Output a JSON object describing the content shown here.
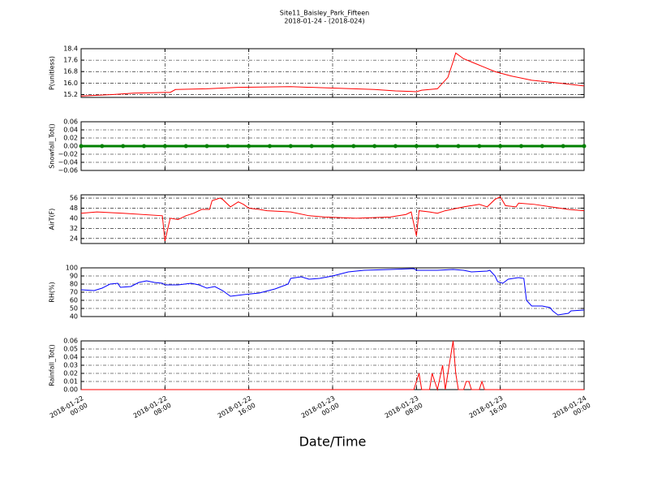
{
  "title": "Site11_Baisley_Park_Fifteen",
  "subtitle": "2018-01-24 - (2018-024)",
  "xlabel": "Date/Time",
  "chart_data": [
    {
      "type": "line",
      "ylabel": "P(unitless)",
      "color": "#ff0000",
      "grid": true,
      "xlim": [
        "2018-01-22 00:00",
        "2018-01-24 00:00"
      ],
      "ylim": [
        15.0,
        18.4
      ],
      "yticks": [
        15.2,
        {
          "value": 16.0,
          "label": "16.0"
        },
        16.8,
        17.6,
        18.4
      ],
      "x": [
        "2018-01-22 00:00",
        "2018-01-22 03:00",
        "2018-01-22 05:00",
        "2018-01-22 08:00",
        "2018-01-22 08:30",
        "2018-01-22 09:00",
        "2018-01-22 12:00",
        "2018-01-22 15:00",
        "2018-01-22 20:00",
        "2018-01-23 00:00",
        "2018-01-23 04:00",
        "2018-01-23 06:00",
        "2018-01-23 08:00",
        "2018-01-23 08:30",
        "2018-01-23 10:00",
        "2018-01-23 11:00",
        "2018-01-23 11:30",
        "2018-01-23 11:45",
        "2018-01-23 12:30",
        "2018-01-23 13:30",
        "2018-01-23 14:30",
        "2018-01-23 15:30",
        "2018-01-23 17:00",
        "2018-01-23 19:00",
        "2018-01-23 21:00",
        "2018-01-24 00:00"
      ],
      "values": [
        15.1,
        15.2,
        15.3,
        15.35,
        15.35,
        15.55,
        15.6,
        15.7,
        15.75,
        15.65,
        15.55,
        15.45,
        15.4,
        15.5,
        15.6,
        16.4,
        17.5,
        18.1,
        17.7,
        17.4,
        17.1,
        16.8,
        16.5,
        16.2,
        16.05,
        15.8
      ]
    },
    {
      "type": "scatter",
      "ylabel": "Snowfall_Tot()",
      "color": "#008000",
      "grid": true,
      "xlim": [
        "2018-01-22 00:00",
        "2018-01-24 00:00"
      ],
      "ylim": [
        -0.06,
        0.06
      ],
      "yticks": [
        {
          "value": -0.06,
          "label": "−0.06"
        },
        {
          "value": -0.04,
          "label": "−0.04"
        },
        {
          "value": -0.02,
          "label": "−0.02"
        },
        {
          "value": 0,
          "label": "0.00"
        },
        {
          "value": 0.02,
          "label": "0.02"
        },
        {
          "value": 0.04,
          "label": "0.04"
        },
        {
          "value": 0.06,
          "label": "0.06"
        }
      ],
      "x": [
        "2018-01-22 00:00",
        "2018-01-22 02:00",
        "2018-01-22 04:00",
        "2018-01-22 06:00",
        "2018-01-22 08:00",
        "2018-01-22 10:00",
        "2018-01-22 12:00",
        "2018-01-22 14:00",
        "2018-01-22 16:00",
        "2018-01-22 18:00",
        "2018-01-22 20:00",
        "2018-01-22 22:00",
        "2018-01-23 00:00",
        "2018-01-23 02:00",
        "2018-01-23 04:00",
        "2018-01-23 06:00",
        "2018-01-23 08:00",
        "2018-01-23 10:00",
        "2018-01-23 12:00",
        "2018-01-23 14:00",
        "2018-01-23 16:00",
        "2018-01-23 18:00",
        "2018-01-23 20:00",
        "2018-01-23 22:00",
        "2018-01-24 00:00"
      ],
      "values": [
        0,
        0,
        0,
        0,
        0,
        0,
        0,
        0,
        0,
        0,
        0,
        0,
        0,
        0,
        0,
        0,
        0,
        0,
        0,
        0,
        0,
        0,
        0,
        0,
        0
      ]
    },
    {
      "type": "line",
      "ylabel": "AirT(F)",
      "color": "#ff0000",
      "grid": true,
      "xlim": [
        "2018-01-22 00:00",
        "2018-01-24 00:00"
      ],
      "ylim": [
        20,
        58.6
      ],
      "yticks": [
        24,
        32,
        40,
        48,
        56
      ],
      "x": [
        "2018-01-22 00:00",
        "2018-01-22 01:30",
        "2018-01-22 04:00",
        "2018-01-22 07:45",
        "2018-01-22 08:00",
        "2018-01-22 08:30",
        "2018-01-22 09:15",
        "2018-01-22 10:00",
        "2018-01-22 10:45",
        "2018-01-22 11:30",
        "2018-01-22 12:15",
        "2018-01-22 12:30",
        "2018-01-22 13:15",
        "2018-01-22 13:30",
        "2018-01-22 14:15",
        "2018-01-22 15:00",
        "2018-01-22 15:30",
        "2018-01-22 16:00",
        "2018-01-22 17:00",
        "2018-01-22 17:45",
        "2018-01-22 20:00",
        "2018-01-22 21:45",
        "2018-01-22 23:15",
        "2018-01-23 02:15",
        "2018-01-23 05:30",
        "2018-01-23 07:00",
        "2018-01-23 07:30",
        "2018-01-23 08:00",
        "2018-01-23 08:15",
        "2018-01-23 09:15",
        "2018-01-23 10:00",
        "2018-01-23 10:45",
        "2018-01-23 12:30",
        "2018-01-23 14:00",
        "2018-01-23 14:45",
        "2018-01-23 15:30",
        "2018-01-23 16:00",
        "2018-01-23 16:30",
        "2018-01-23 17:30",
        "2018-01-23 17:45",
        "2018-01-23 19:15",
        "2018-01-23 22:30",
        "2018-01-24 00:00"
      ],
      "values": [
        44,
        45,
        44,
        42,
        22,
        40,
        39,
        42,
        44,
        47,
        47,
        54,
        56,
        55,
        49,
        53,
        51,
        48,
        47,
        46,
        45,
        42,
        41,
        40,
        41,
        43,
        45,
        26,
        46,
        45,
        44,
        46,
        49,
        51,
        49,
        55,
        57,
        50,
        49,
        52,
        51,
        47,
        46
      ]
    },
    {
      "type": "line",
      "ylabel": "RH(%)",
      "color": "#0000ff",
      "grid": true,
      "xlim": [
        "2018-01-22 00:00",
        "2018-01-24 00:00"
      ],
      "ylim": [
        40,
        100
      ],
      "yticks": [
        40,
        50,
        60,
        70,
        80,
        90,
        100
      ],
      "x": [
        "2018-01-22 00:00",
        "2018-01-22 01:15",
        "2018-01-22 02:00",
        "2018-01-22 02:45",
        "2018-01-22 03:30",
        "2018-01-22 03:45",
        "2018-01-22 04:45",
        "2018-01-22 05:30",
        "2018-01-22 06:15",
        "2018-01-22 07:00",
        "2018-01-22 07:45",
        "2018-01-22 08:00",
        "2018-01-22 09:15",
        "2018-01-22 10:30",
        "2018-01-22 11:15",
        "2018-01-22 12:00",
        "2018-01-22 12:45",
        "2018-01-22 13:30",
        "2018-01-22 14:15",
        "2018-01-22 15:30",
        "2018-01-22 17:00",
        "2018-01-22 18:30",
        "2018-01-22 19:45",
        "2018-01-22 20:00",
        "2018-01-22 21:00",
        "2018-01-22 21:45",
        "2018-01-22 22:45",
        "2018-01-23 00:00",
        "2018-01-23 01:30",
        "2018-01-23 03:00",
        "2018-01-23 05:30",
        "2018-01-23 07:45",
        "2018-01-23 08:00",
        "2018-01-23 10:00",
        "2018-01-23 11:30",
        "2018-01-23 12:30",
        "2018-01-23 13:15",
        "2018-01-23 14:45",
        "2018-01-23 15:00",
        "2018-01-23 15:30",
        "2018-01-23 15:45",
        "2018-01-23 16:15",
        "2018-01-23 16:45",
        "2018-01-23 17:45",
        "2018-01-23 18:15",
        "2018-01-23 18:30",
        "2018-01-23 19:00",
        "2018-01-23 20:00",
        "2018-01-23 20:45",
        "2018-01-23 21:00",
        "2018-01-23 21:30",
        "2018-01-23 22:30",
        "2018-01-23 22:45",
        "2018-01-24 00:00"
      ],
      "values": [
        73,
        72,
        75,
        80,
        81,
        76,
        77,
        82,
        84,
        82,
        81,
        79,
        79,
        81,
        79,
        75,
        77,
        72,
        65,
        67,
        69,
        74,
        80,
        87,
        89,
        86,
        87,
        90,
        95,
        97,
        98,
        99,
        97,
        97,
        98,
        97,
        95,
        96,
        97,
        90,
        83,
        81,
        86,
        88,
        87,
        60,
        53,
        53,
        51,
        47,
        42,
        44,
        47,
        48
      ]
    },
    {
      "type": "line",
      "ylabel": "Rainfall_Tot()",
      "color": "#ff0000",
      "grid": true,
      "xlim": [
        "2018-01-22 00:00",
        "2018-01-24 00:00"
      ],
      "ylim": [
        0,
        0.06
      ],
      "yticks": [
        {
          "value": 0,
          "label": "0.00"
        },
        {
          "value": 0.01,
          "label": "0.01"
        },
        {
          "value": 0.02,
          "label": "0.02"
        },
        {
          "value": 0.03,
          "label": "0.03"
        },
        {
          "value": 0.04,
          "label": "0.04"
        },
        {
          "value": 0.05,
          "label": "0.05"
        },
        {
          "value": 0.06,
          "label": "0.06"
        }
      ],
      "xticks": [
        {
          "value": "2018-01-22 00:00",
          "label": "2018-01-22\n00:00"
        },
        {
          "value": "2018-01-22 08:00",
          "label": "2018-01-22\n08:00"
        },
        {
          "value": "2018-01-22 16:00",
          "label": "2018-01-22\n16:00"
        },
        {
          "value": "2018-01-23 00:00",
          "label": "2018-01-23\n00:00"
        },
        {
          "value": "2018-01-23 08:00",
          "label": "2018-01-23\n08:00"
        },
        {
          "value": "2018-01-23 16:00",
          "label": "2018-01-23\n16:00"
        },
        {
          "value": "2018-01-24 00:00",
          "label": "2018-01-24\n00:00"
        }
      ],
      "x": [
        "2018-01-22 00:00",
        "2018-01-23 07:45",
        "2018-01-23 08:15",
        "2018-01-23 08:30",
        "2018-01-23 09:15",
        "2018-01-23 09:30",
        "2018-01-23 10:00",
        "2018-01-23 10:30",
        "2018-01-23 10:45",
        "2018-01-23 11:30",
        "2018-01-23 11:45",
        "2018-01-23 12:00",
        "2018-01-23 12:30",
        "2018-01-23 12:45",
        "2018-01-23 13:00",
        "2018-01-23 13:15",
        "2018-01-23 14:00",
        "2018-01-23 14:15",
        "2018-01-23 14:30",
        "2018-01-24 00:00"
      ],
      "values": [
        0,
        0,
        0.02,
        0,
        0,
        0.02,
        0,
        0.03,
        0,
        0.06,
        0.02,
        0,
        0,
        0.01,
        0.01,
        0,
        0,
        0.01,
        0,
        0
      ]
    }
  ]
}
